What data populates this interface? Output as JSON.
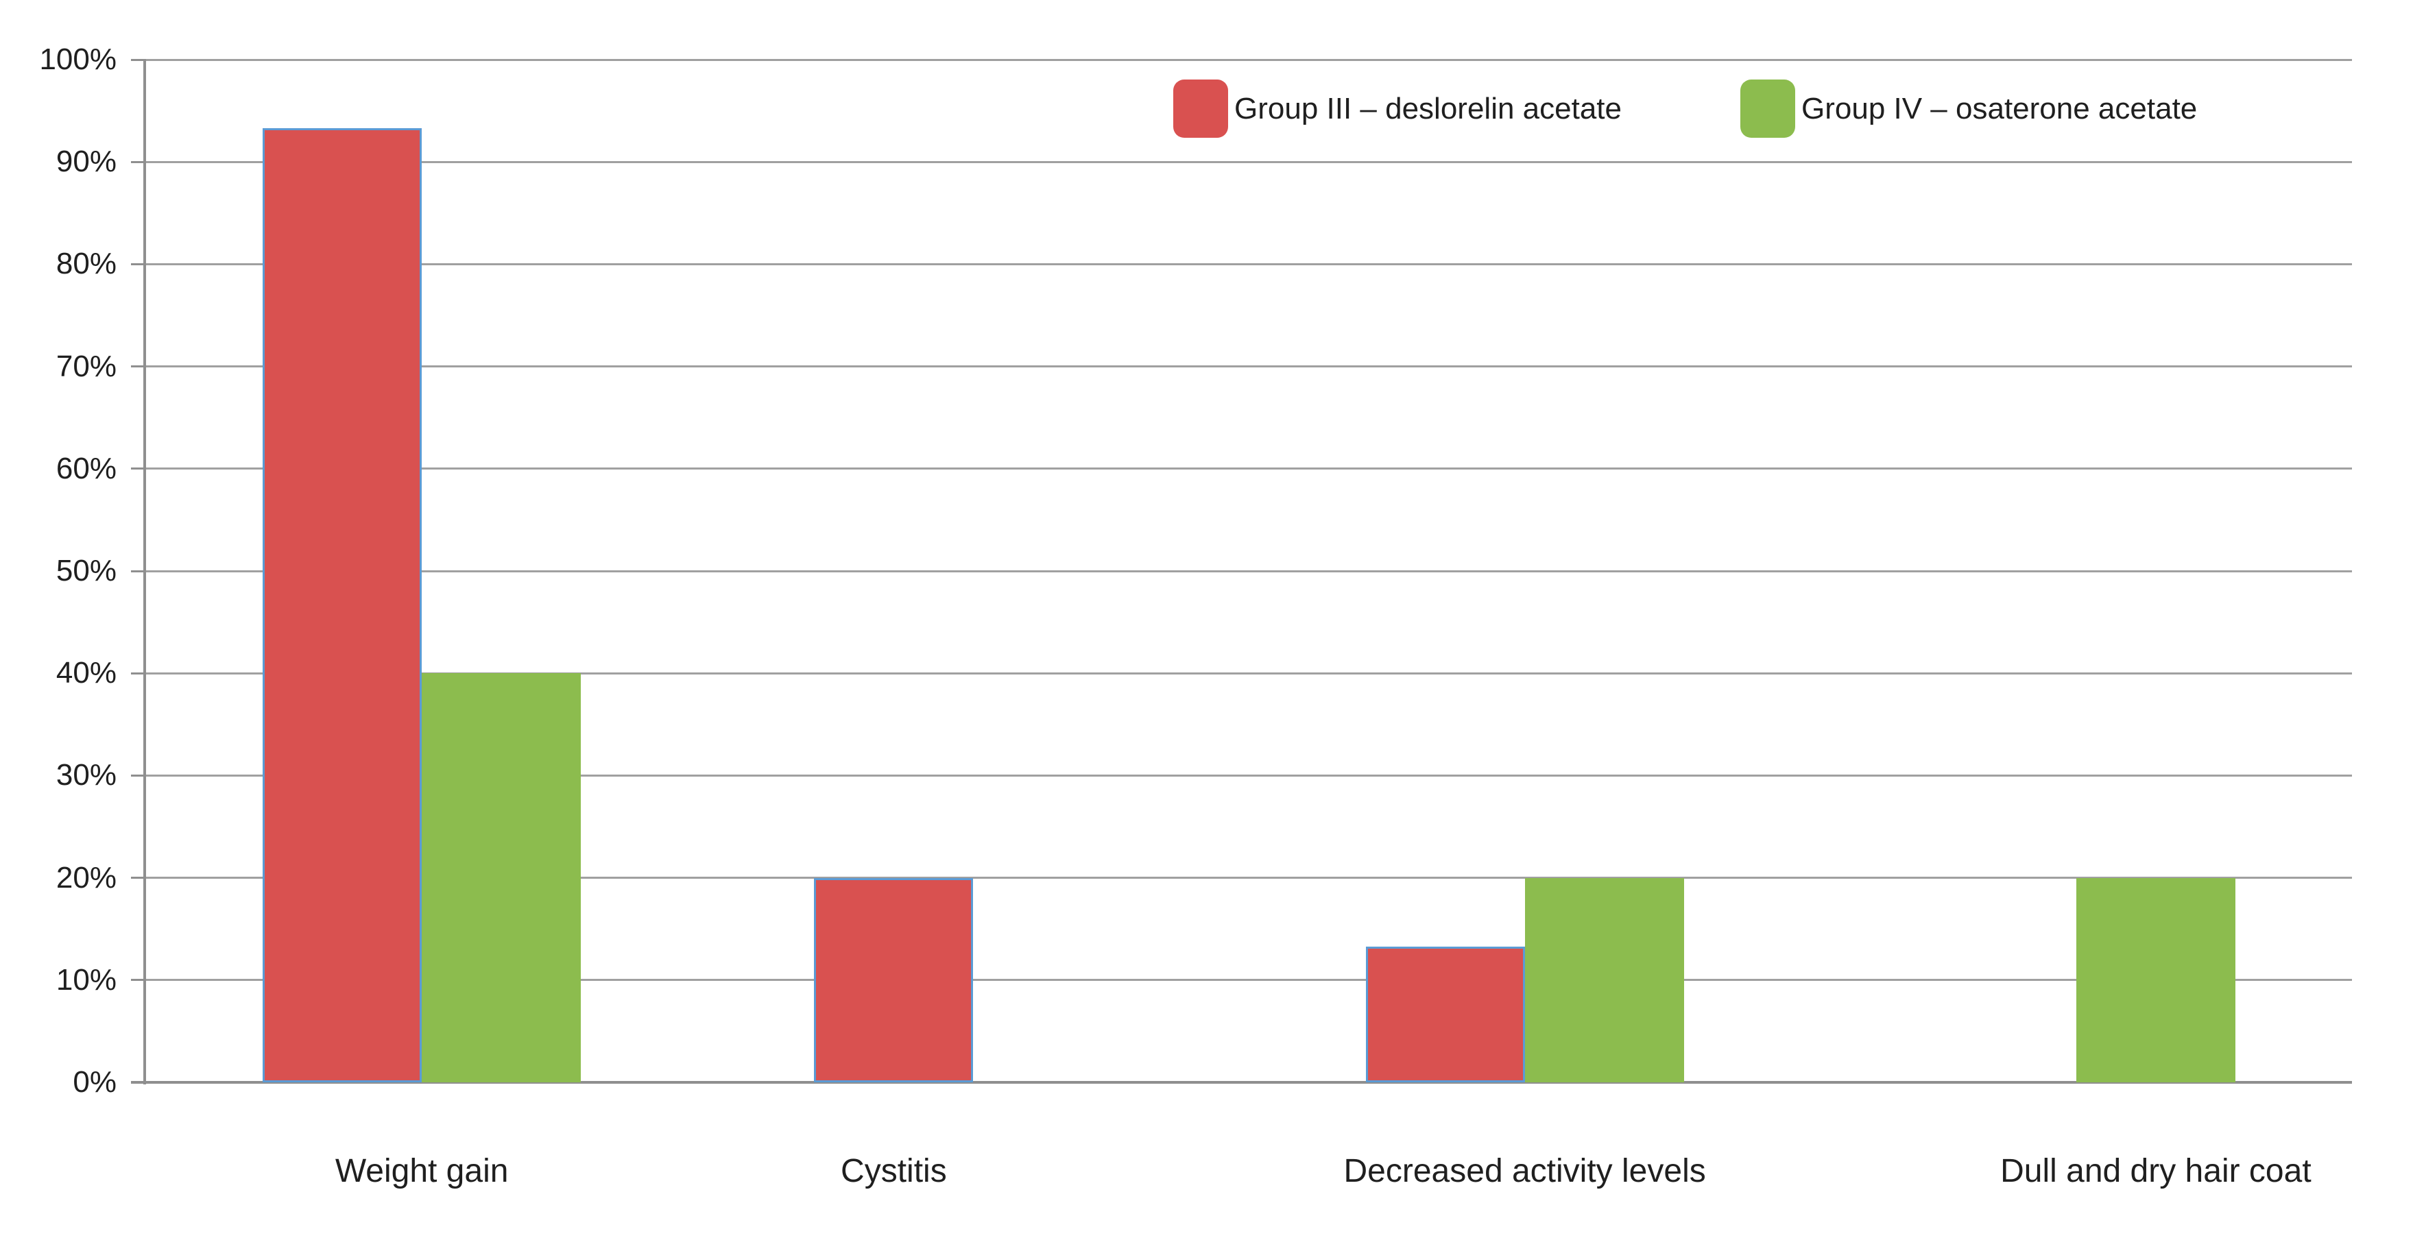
{
  "chart_data": {
    "type": "bar",
    "title": "",
    "categories": [
      "Weight gain",
      "Cystitis",
      "Decreased activity levels",
      "Dull and dry hair coat"
    ],
    "series": [
      {
        "name": "Group III – deslorelin acetate",
        "color": "#d95150",
        "border_color": "#5b9bd5",
        "values": [
          93.3,
          20,
          13.3,
          0
        ]
      },
      {
        "name": "Group IV – osaterone acetate",
        "color": "#8cbc4e",
        "border_color": null,
        "values": [
          40,
          0,
          20,
          20
        ]
      }
    ],
    "y_axis": {
      "min": 0,
      "max": 100,
      "step": 10,
      "tick_labels": [
        "0%",
        "10%",
        "20%",
        "30%",
        "40%",
        "50%",
        "60%",
        "70%",
        "80%",
        "90%",
        "100%"
      ]
    },
    "xlabel": "",
    "ylabel": "",
    "grid": true,
    "legend_position": "top-right",
    "colors": {
      "gridline": "#a0a0a0",
      "axis": "#8f8f8f",
      "text": "#1f1f1f",
      "background": "#ffffff"
    }
  }
}
